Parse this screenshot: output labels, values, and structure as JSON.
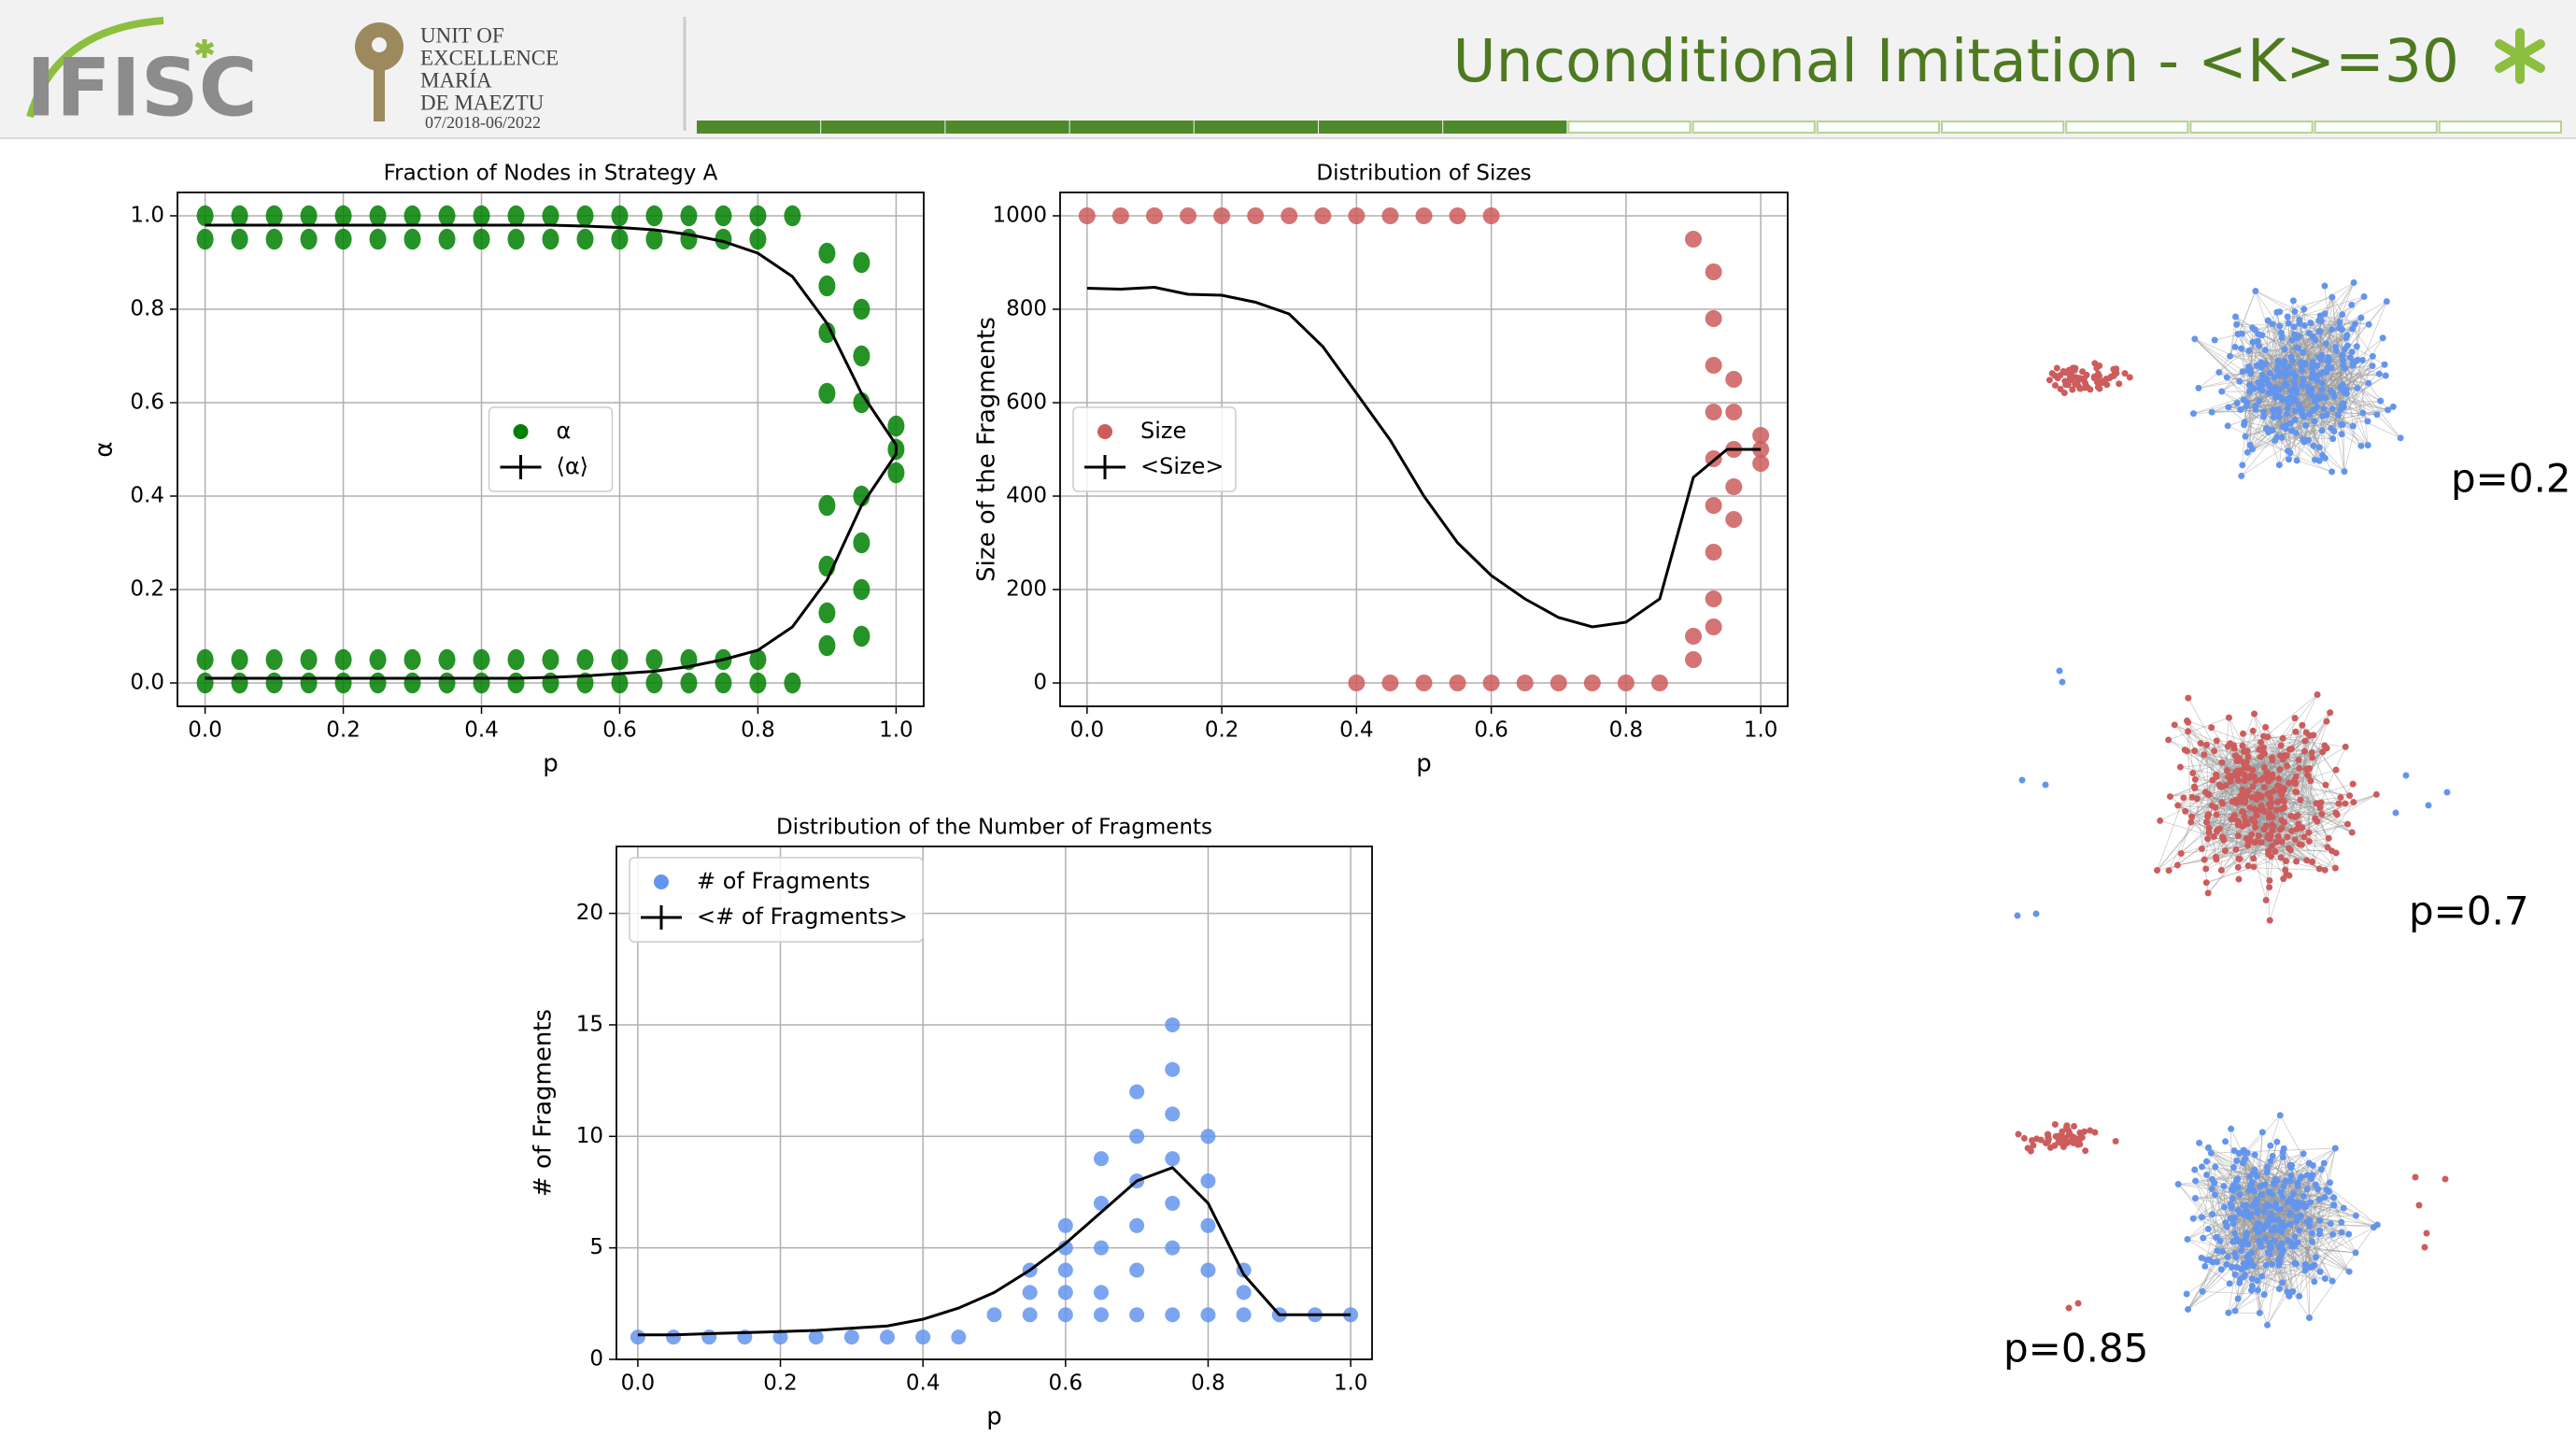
{
  "header": {
    "title": "Unconditional Imitation - <K>=30",
    "logo": "IFISC",
    "unit_lines": [
      "UNIT OF",
      "EXCELLENCE",
      "MARÍA",
      "DE MAEZTU"
    ],
    "unit_dates": "07/2018-06/2022"
  },
  "chart_data": [
    {
      "type": "scatter",
      "title": "Fraction of Nodes in Strategy A",
      "xlabel": "p",
      "ylabel": "α",
      "xlim": [
        -0.04,
        1.04
      ],
      "ylim": [
        -0.05,
        1.05
      ],
      "xticks": [
        {
          "value": 0,
          "label": "0.0"
        },
        0.2,
        0.4,
        0.6,
        0.8,
        {
          "value": 1,
          "label": "1.0"
        }
      ],
      "yticks": [
        {
          "value": 0,
          "label": "0.0"
        },
        0.2,
        0.4,
        0.6,
        0.8,
        {
          "value": 1,
          "label": "1.0"
        }
      ],
      "grid": true,
      "legend": "center",
      "series": [
        {
          "name": "α",
          "type": "scatter",
          "color": "#008000",
          "x": [
            0,
            0.05,
            0.1,
            0.15,
            0.2,
            0.25,
            0.3,
            0.35,
            0.4,
            0.45,
            0.5,
            0.55,
            0.6,
            0.65,
            0.7,
            0.75,
            0.8,
            0.85,
            0,
            0.05,
            0.1,
            0.15,
            0.2,
            0.25,
            0.3,
            0.35,
            0.4,
            0.45,
            0.5,
            0.55,
            0.6,
            0.65,
            0.7,
            0.75,
            0.8,
            0.85,
            0,
            0.05,
            0.1,
            0.15,
            0.2,
            0.25,
            0.3,
            0.35,
            0.4,
            0.45,
            0.5,
            0.55,
            0.6,
            0.65,
            0.7,
            0.75,
            0.8,
            0,
            0.05,
            0.1,
            0.15,
            0.2,
            0.25,
            0.3,
            0.35,
            0.4,
            0.45,
            0.5,
            0.55,
            0.6,
            0.65,
            0.7,
            0.75,
            0.8,
            0.9,
            0.9,
            0.9,
            0.9,
            0.9,
            0.9,
            0.9,
            0.9,
            0.95,
            0.95,
            0.95,
            0.95,
            0.95,
            0.95,
            0.95,
            0.95,
            1,
            1,
            1
          ],
          "values": [
            1,
            1,
            1,
            1,
            1,
            1,
            1,
            1,
            1,
            1,
            1,
            1,
            1,
            1,
            1,
            1,
            1,
            1,
            0,
            0,
            0,
            0,
            0,
            0,
            0,
            0,
            0,
            0,
            0,
            0,
            0,
            0,
            0,
            0,
            0,
            0,
            0.95,
            0.95,
            0.95,
            0.95,
            0.95,
            0.95,
            0.95,
            0.95,
            0.95,
            0.95,
            0.95,
            0.95,
            0.95,
            0.95,
            0.95,
            0.95,
            0.95,
            0.05,
            0.05,
            0.05,
            0.05,
            0.05,
            0.05,
            0.05,
            0.05,
            0.05,
            0.05,
            0.05,
            0.05,
            0.05,
            0.05,
            0.05,
            0.05,
            0.05,
            0.92,
            0.85,
            0.75,
            0.62,
            0.38,
            0.25,
            0.15,
            0.08,
            0.9,
            0.8,
            0.7,
            0.6,
            0.4,
            0.3,
            0.2,
            0.1,
            0.55,
            0.5,
            0.45
          ]
        },
        {
          "name": "⟨α⟩",
          "type": "line",
          "color": "#000000",
          "x": [
            0,
            0.05,
            0.1,
            0.15,
            0.2,
            0.25,
            0.3,
            0.35,
            0.4,
            0.45,
            0.5,
            0.55,
            0.6,
            0.65,
            0.7,
            0.75,
            0.8,
            0.85,
            0.9,
            0.95,
            1,
            1,
            0.95,
            0.9,
            0.85,
            0.8,
            0.75,
            0.7,
            0.65,
            0.6,
            0.55,
            0.5,
            0.45,
            0.4,
            0.35,
            0.3,
            0.25,
            0.2,
            0.15,
            0.1,
            0.05,
            0
          ],
          "values": [
            0.98,
            0.98,
            0.98,
            0.98,
            0.98,
            0.98,
            0.98,
            0.98,
            0.98,
            0.98,
            0.98,
            0.978,
            0.975,
            0.97,
            0.96,
            0.945,
            0.92,
            0.87,
            0.77,
            0.62,
            0.51,
            0.49,
            0.38,
            0.22,
            0.12,
            0.07,
            0.05,
            0.035,
            0.025,
            0.02,
            0.015,
            0.012,
            0.01,
            0.01,
            0.01,
            0.01,
            0.01,
            0.01,
            0.01,
            0.01,
            0.01,
            0.01
          ]
        }
      ]
    },
    {
      "type": "scatter",
      "title": "Distribution of Sizes",
      "xlabel": "p",
      "ylabel": "Size of the Fragments",
      "xlim": [
        -0.04,
        1.04
      ],
      "ylim": [
        -50,
        1050
      ],
      "xticks": [
        {
          "value": 0,
          "label": "0.0"
        },
        0.2,
        0.4,
        0.6,
        0.8,
        {
          "value": 1,
          "label": "1.0"
        }
      ],
      "yticks": [
        0,
        200,
        400,
        600,
        800,
        1000
      ],
      "grid": true,
      "legend": "center left",
      "series": [
        {
          "name": "Size",
          "type": "scatter",
          "color": "#cd5c5c",
          "x": [
            0,
            0.05,
            0.1,
            0.15,
            0.2,
            0.25,
            0.3,
            0.35,
            0.4,
            0.45,
            0.5,
            0.55,
            0.6,
            0.4,
            0.45,
            0.5,
            0.55,
            0.6,
            0.65,
            0.7,
            0.75,
            0.8,
            0.85,
            0.9,
            0.9,
            0.9,
            0.93,
            0.93,
            0.93,
            0.93,
            0.93,
            0.93,
            0.93,
            0.93,
            0.93,
            0.96,
            0.96,
            0.96,
            0.96,
            0.96,
            1,
            1,
            1
          ],
          "values": [
            1000,
            1000,
            1000,
            1000,
            1000,
            1000,
            1000,
            1000,
            1000,
            1000,
            1000,
            1000,
            1000,
            0,
            0,
            0,
            0,
            0,
            0,
            0,
            0,
            0,
            0,
            950,
            100,
            50,
            880,
            780,
            680,
            580,
            480,
            380,
            280,
            180,
            120,
            650,
            580,
            500,
            420,
            350,
            530,
            500,
            470
          ]
        },
        {
          "name": "<Size>",
          "type": "line",
          "color": "#000000",
          "x": [
            0,
            0.05,
            0.1,
            0.15,
            0.2,
            0.25,
            0.3,
            0.35,
            0.4,
            0.45,
            0.5,
            0.55,
            0.6,
            0.65,
            0.7,
            0.75,
            0.8,
            0.85,
            0.9,
            0.95,
            1
          ],
          "values": [
            845,
            843,
            847,
            832,
            830,
            815,
            790,
            720,
            620,
            520,
            400,
            300,
            230,
            180,
            140,
            120,
            130,
            180,
            440,
            500,
            500
          ]
        }
      ]
    },
    {
      "type": "scatter",
      "title": "Distribution of the Number of Fragments",
      "xlabel": "p",
      "ylabel": "# of Fragments",
      "xlim": [
        -0.03,
        1.03
      ],
      "ylim": [
        0,
        23
      ],
      "xticks": [
        {
          "value": 0,
          "label": "0.0"
        },
        0.2,
        0.4,
        0.6,
        0.8,
        {
          "value": 1,
          "label": "1.0"
        }
      ],
      "yticks": [
        0,
        5,
        10,
        15,
        20
      ],
      "grid": true,
      "legend": "upper left",
      "series": [
        {
          "name": "# of Fragments",
          "type": "scatter",
          "color": "#6495ed",
          "x": [
            0,
            0.05,
            0.1,
            0.15,
            0.2,
            0.25,
            0.3,
            0.35,
            0.4,
            0.45,
            0.5,
            0.55,
            0.6,
            0.65,
            0.7,
            0.75,
            0.8,
            0.85,
            0.9,
            0.95,
            1,
            0.55,
            0.55,
            0.6,
            0.6,
            0.6,
            0.6,
            0.65,
            0.65,
            0.65,
            0.65,
            0.7,
            0.7,
            0.7,
            0.7,
            0.7,
            0.75,
            0.75,
            0.75,
            0.75,
            0.75,
            0.75,
            0.8,
            0.8,
            0.8,
            0.8,
            0.85,
            0.85
          ],
          "values": [
            1,
            1,
            1,
            1,
            1,
            1,
            1,
            1,
            1,
            1,
            2,
            2,
            2,
            2,
            2,
            2,
            2,
            2,
            2,
            2,
            2,
            3,
            4,
            3,
            4,
            5,
            6,
            3,
            5,
            7,
            9,
            4,
            6,
            8,
            10,
            12,
            5,
            7,
            9,
            11,
            13,
            15,
            4,
            6,
            8,
            10,
            3,
            4
          ]
        },
        {
          "name": "<# of Fragments>",
          "type": "line",
          "color": "#000000",
          "x": [
            0,
            0.05,
            0.1,
            0.15,
            0.2,
            0.25,
            0.3,
            0.35,
            0.4,
            0.45,
            0.5,
            0.55,
            0.6,
            0.65,
            0.7,
            0.75,
            0.8,
            0.85,
            0.9,
            0.95,
            1
          ],
          "values": [
            1.1,
            1.1,
            1.15,
            1.2,
            1.25,
            1.3,
            1.4,
            1.5,
            1.8,
            2.3,
            3,
            4,
            5.2,
            6.6,
            8,
            8.6,
            7,
            3.8,
            2,
            2,
            2
          ]
        }
      ]
    }
  ],
  "networks": [
    {
      "label": "p=0.2"
    },
    {
      "label": "p=0.7"
    },
    {
      "label": "p=0.85"
    }
  ]
}
